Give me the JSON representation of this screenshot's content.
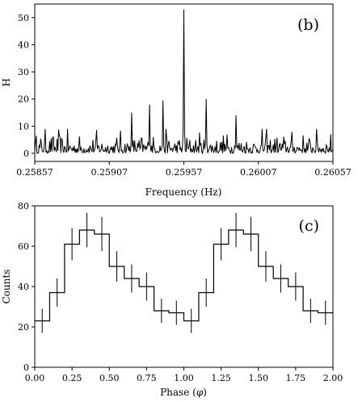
{
  "chart_data": [
    {
      "panel": "(b)",
      "type": "line",
      "xlabel": "Frequency (Hz)",
      "ylabel": "H",
      "xlim": [
        0.25857,
        0.26057
      ],
      "ylim": [
        -3,
        55
      ],
      "x_ticks": [
        "0.25857",
        "0.25907",
        "0.25957",
        "0.26007",
        "0.26057"
      ],
      "y_ticks": [
        "0",
        "10",
        "20",
        "30",
        "40",
        "50"
      ],
      "peak": {
        "x": 0.25957,
        "y": 53
      },
      "secondary_peaks": [
        {
          "x": 0.25934,
          "y": 18
        },
        {
          "x": 0.25943,
          "y": 19.5
        },
        {
          "x": 0.25972,
          "y": 20
        },
        {
          "x": 0.25922,
          "y": 15
        },
        {
          "x": 0.25992,
          "y": 14
        }
      ],
      "noise_level": 5,
      "noise_samples": 400
    },
    {
      "panel": "(c)",
      "type": "step",
      "xlabel": "Phase (φ)",
      "xlabel_plain": "Phase (",
      "xlabel_symbol": "φ",
      "xlabel_close": ")",
      "ylabel": "Counts",
      "xlim": [
        0,
        2
      ],
      "ylim": [
        0,
        80
      ],
      "x_ticks": [
        "0.00",
        "0.25",
        "0.50",
        "0.75",
        "1.00",
        "1.25",
        "1.50",
        "1.75",
        "2.00"
      ],
      "y_ticks": [
        "0",
        "20",
        "40",
        "60",
        "80"
      ],
      "bin_width": 0.1,
      "bins": [
        {
          "x": 0.05,
          "y": 23,
          "err": 6
        },
        {
          "x": 0.15,
          "y": 37,
          "err": 7
        },
        {
          "x": 0.25,
          "y": 61,
          "err": 8
        },
        {
          "x": 0.35,
          "y": 68,
          "err": 8.5
        },
        {
          "x": 0.45,
          "y": 66,
          "err": 8.5
        },
        {
          "x": 0.55,
          "y": 50,
          "err": 7.5
        },
        {
          "x": 0.65,
          "y": 44,
          "err": 7
        },
        {
          "x": 0.75,
          "y": 40,
          "err": 7
        },
        {
          "x": 0.85,
          "y": 28,
          "err": 6
        },
        {
          "x": 0.95,
          "y": 27,
          "err": 6
        },
        {
          "x": 1.05,
          "y": 23,
          "err": 6
        },
        {
          "x": 1.15,
          "y": 37,
          "err": 7
        },
        {
          "x": 1.25,
          "y": 61,
          "err": 8
        },
        {
          "x": 1.35,
          "y": 68,
          "err": 8.5
        },
        {
          "x": 1.45,
          "y": 66,
          "err": 8.5
        },
        {
          "x": 1.55,
          "y": 50,
          "err": 7.5
        },
        {
          "x": 1.65,
          "y": 44,
          "err": 7
        },
        {
          "x": 1.75,
          "y": 40,
          "err": 7
        },
        {
          "x": 1.85,
          "y": 28,
          "err": 6
        },
        {
          "x": 1.95,
          "y": 27,
          "err": 6
        }
      ]
    }
  ]
}
